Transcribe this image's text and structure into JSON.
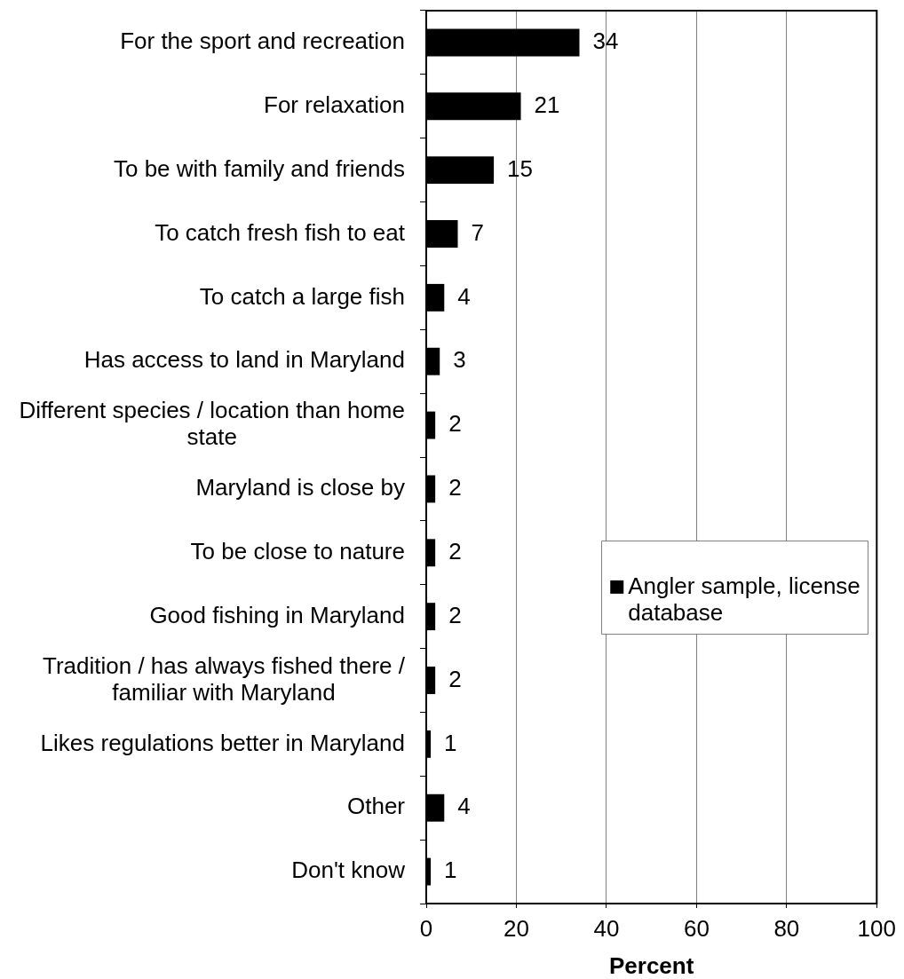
{
  "chart_data": {
    "type": "bar",
    "orientation": "horizontal",
    "categories": [
      "For the sport and recreation",
      "For relaxation",
      "To be with family and friends",
      "To catch fresh fish to eat",
      "To catch a large fish",
      "Has access to land in Maryland",
      "Different species / location than home state",
      "Maryland is close by",
      "To be close to nature",
      "Good fishing in Maryland",
      "Tradition / has always fished there / familiar with Maryland",
      "Likes regulations better in Maryland",
      "Other",
      "Don't know"
    ],
    "series": [
      {
        "name": "Angler sample, license database",
        "color": "#000000",
        "values": [
          34,
          21,
          15,
          7,
          4,
          3,
          2,
          2,
          2,
          2,
          2,
          1,
          4,
          1
        ]
      }
    ],
    "xlabel": "Percent",
    "xlim": [
      0,
      100
    ],
    "xticks": [
      0,
      20,
      40,
      60,
      80,
      100
    ],
    "grid": "x",
    "legend": "right",
    "data_labels": true
  }
}
